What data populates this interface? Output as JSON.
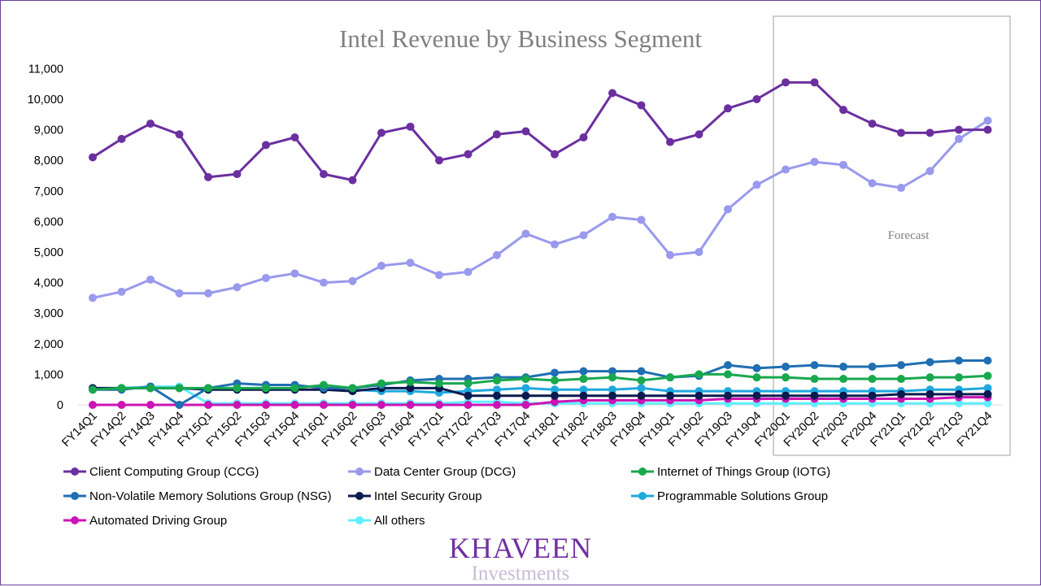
{
  "chart_data": {
    "type": "line",
    "title": "Intel Revenue by Business Segment",
    "xlabel": "",
    "ylabel": "",
    "ylim": [
      0,
      11000
    ],
    "yticks": [
      "0",
      "1,000",
      "2,000",
      "3,000",
      "4,000",
      "5,000",
      "6,000",
      "7,000",
      "8,000",
      "9,000",
      "10,000",
      "11,000"
    ],
    "categories": [
      "FY14Q1",
      "FY14Q2",
      "FY14Q3",
      "FY14Q4",
      "FY15Q1",
      "FY15Q2",
      "FY15Q3",
      "FY15Q4",
      "FY16Q1",
      "FY16Q2",
      "FY16Q3",
      "FY16Q4",
      "FY17Q1",
      "FY17Q2",
      "FY17Q3",
      "FY17Q4",
      "FY18Q1",
      "FY18Q2",
      "FY18Q3",
      "FY18Q4",
      "FY19Q1",
      "FY19Q2",
      "FY19Q3",
      "FY19Q4",
      "FY20Q1",
      "FY20Q2",
      "FY20Q3",
      "FY20Q4",
      "FY21Q1",
      "FY21Q2",
      "FY21Q3",
      "FY21Q4"
    ],
    "grid": false,
    "legend_position": "bottom",
    "annotations": [
      {
        "text": "Forecast",
        "range": [
          "FY20Q1",
          "FY21Q4"
        ]
      }
    ],
    "series": [
      {
        "name": "Client Computing Group (CCG)",
        "color": "#6b2fa0",
        "values": [
          8100,
          8700,
          9200,
          8850,
          7450,
          7550,
          8500,
          8750,
          7550,
          7350,
          8900,
          9100,
          8000,
          8200,
          8850,
          8950,
          8200,
          8750,
          10200,
          9800,
          8600,
          8850,
          9700,
          10000,
          10550,
          10550,
          9650,
          9200,
          8900,
          8900,
          9000,
          9000
        ]
      },
      {
        "name": "Data Center Group (DCG)",
        "color": "#9999ee",
        "values": [
          3500,
          3700,
          4100,
          3650,
          3650,
          3850,
          4150,
          4300,
          4000,
          4050,
          4550,
          4650,
          4250,
          4350,
          4900,
          5600,
          5250,
          5550,
          6150,
          6050,
          4900,
          5000,
          6400,
          7200,
          7700,
          7950,
          7850,
          7250,
          7100,
          7650,
          8700,
          9300
        ]
      },
      {
        "name": "Internet of Things Group (IOTG)",
        "color": "#18a84e",
        "values": [
          500,
          550,
          550,
          550,
          550,
          550,
          550,
          550,
          650,
          550,
          700,
          750,
          700,
          700,
          800,
          850,
          800,
          850,
          900,
          800,
          900,
          1000,
          1000,
          900,
          900,
          850,
          850,
          850,
          850,
          900,
          900,
          950
        ]
      },
      {
        "name": "Non-Volatile Memory Solutions Group (NSG)",
        "color": "#1f6fb2",
        "values": [
          500,
          500,
          600,
          0,
          550,
          700,
          650,
          650,
          550,
          550,
          650,
          800,
          850,
          850,
          900,
          900,
          1050,
          1100,
          1100,
          1100,
          900,
          950,
          1300,
          1200,
          1250,
          1300,
          1250,
          1250,
          1300,
          1400,
          1450,
          1450
        ]
      },
      {
        "name": "Intel Security Group",
        "color": "#0b1a4f",
        "values": [
          550,
          550,
          550,
          550,
          500,
          500,
          500,
          500,
          500,
          450,
          550,
          550,
          550,
          300,
          300,
          300,
          300,
          300,
          300,
          300,
          300,
          300,
          300,
          300,
          300,
          300,
          300,
          300,
          350,
          350,
          350,
          350
        ]
      },
      {
        "name": "Programmable Solutions Group",
        "color": "#1fa8dd",
        "values": [
          null,
          null,
          null,
          null,
          null,
          null,
          null,
          null,
          null,
          500,
          450,
          450,
          400,
          450,
          500,
          550,
          500,
          500,
          500,
          550,
          450,
          450,
          450,
          450,
          450,
          450,
          450,
          450,
          450,
          500,
          500,
          550
        ]
      },
      {
        "name": "Automated Driving Group",
        "color": "#cc14b4",
        "values": [
          0,
          0,
          0,
          0,
          0,
          0,
          0,
          0,
          0,
          0,
          0,
          0,
          0,
          0,
          0,
          0,
          100,
          150,
          150,
          150,
          150,
          150,
          200,
          200,
          200,
          200,
          200,
          200,
          200,
          200,
          250,
          250
        ]
      },
      {
        "name": "All others",
        "color": "#5ff0ff",
        "values": [
          500,
          550,
          600,
          600,
          50,
          50,
          50,
          50,
          50,
          50,
          50,
          50,
          50,
          100,
          100,
          50,
          50,
          50,
          50,
          50,
          50,
          50,
          50,
          50,
          50,
          50,
          50,
          50,
          50,
          50,
          50,
          50
        ]
      }
    ]
  },
  "brand": {
    "name": "Khaveen",
    "sub": "Investments"
  }
}
